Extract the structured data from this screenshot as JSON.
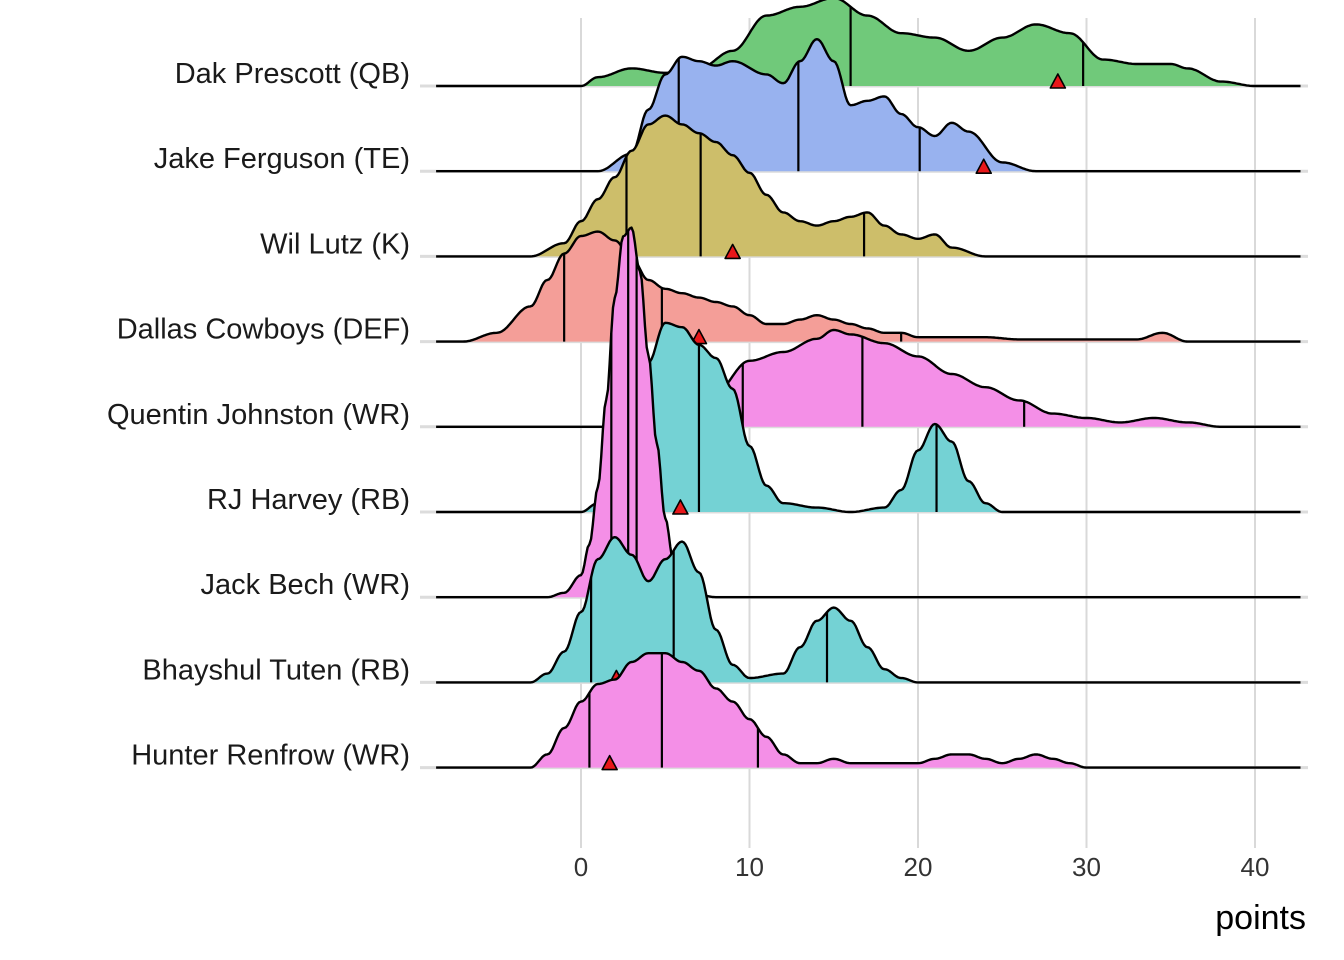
{
  "chart_data": {
    "type": "ridgeline",
    "title": "",
    "xlabel": "points",
    "ylabel": "",
    "xlim": [
      -8.6,
      42.7
    ],
    "x_ticks": [
      0,
      10,
      20,
      30,
      40
    ],
    "x_tick_labels": [
      "0",
      "10",
      "20",
      "30",
      "40"
    ],
    "grid": "vertical lines at x ticks",
    "legend": "none",
    "marker_description": "red triangle",
    "rows": [
      {
        "name": "Dak Prescott (QB)",
        "color": "#70c97a",
        "quantile_lines": [
          6.3,
          16.0,
          29.8
        ],
        "marker": 28.3,
        "density": [
          [
            0,
            0
          ],
          [
            1,
            0.02
          ],
          [
            3,
            0.04
          ],
          [
            5,
            0.03
          ],
          [
            7,
            0.04
          ],
          [
            9,
            0.08
          ],
          [
            11,
            0.16
          ],
          [
            13,
            0.18
          ],
          [
            15,
            0.2
          ],
          [
            17,
            0.16
          ],
          [
            19,
            0.12
          ],
          [
            21,
            0.11
          ],
          [
            23,
            0.08
          ],
          [
            25,
            0.11
          ],
          [
            27,
            0.14
          ],
          [
            29,
            0.12
          ],
          [
            31,
            0.06
          ],
          [
            33,
            0.05
          ],
          [
            35,
            0.05
          ],
          [
            36,
            0.04
          ],
          [
            38,
            0.01
          ],
          [
            40,
            0
          ]
        ]
      },
      {
        "name": "Jake Ferguson (TE)",
        "color": "#98b2ef",
        "quantile_lines": [
          5.8,
          12.9,
          20.1
        ],
        "marker": 23.9,
        "density": [
          [
            1,
            0
          ],
          [
            3,
            0.04
          ],
          [
            4,
            0.14
          ],
          [
            5,
            0.22
          ],
          [
            6,
            0.26
          ],
          [
            7,
            0.25
          ],
          [
            8,
            0.24
          ],
          [
            9,
            0.25
          ],
          [
            11,
            0.22
          ],
          [
            12,
            0.2
          ],
          [
            13,
            0.25
          ],
          [
            14,
            0.3
          ],
          [
            15,
            0.25
          ],
          [
            16,
            0.15
          ],
          [
            17,
            0.16
          ],
          [
            18,
            0.17
          ],
          [
            19,
            0.13
          ],
          [
            20,
            0.1
          ],
          [
            21,
            0.08
          ],
          [
            22,
            0.11
          ],
          [
            23,
            0.09
          ],
          [
            25,
            0.02
          ],
          [
            27,
            0
          ]
        ]
      },
      {
        "name": "Wil Lutz (K)",
        "color": "#cdbe6a",
        "quantile_lines": [
          2.7,
          7.1,
          16.8
        ],
        "marker": 9.0,
        "density": [
          [
            -3,
            0
          ],
          [
            -1,
            0.03
          ],
          [
            0,
            0.08
          ],
          [
            1,
            0.13
          ],
          [
            2,
            0.18
          ],
          [
            3,
            0.24
          ],
          [
            4,
            0.3
          ],
          [
            5,
            0.32
          ],
          [
            6,
            0.3
          ],
          [
            7,
            0.28
          ],
          [
            8,
            0.26
          ],
          [
            9,
            0.23
          ],
          [
            10,
            0.19
          ],
          [
            11,
            0.14
          ],
          [
            12,
            0.1
          ],
          [
            13,
            0.08
          ],
          [
            14,
            0.07
          ],
          [
            15,
            0.08
          ],
          [
            16,
            0.09
          ],
          [
            17,
            0.1
          ],
          [
            18,
            0.07
          ],
          [
            19,
            0.05
          ],
          [
            20,
            0.04
          ],
          [
            21,
            0.05
          ],
          [
            22,
            0.02
          ],
          [
            24,
            0
          ]
        ]
      },
      {
        "name": "Dallas Cowboys (DEF)",
        "color": "#f49e98",
        "quantile_lines": [
          -1.0,
          4.8,
          19.0
        ],
        "marker": 7.0,
        "density": [
          [
            -7,
            0
          ],
          [
            -5,
            0.02
          ],
          [
            -3,
            0.08
          ],
          [
            -2,
            0.14
          ],
          [
            -1,
            0.2
          ],
          [
            0,
            0.24
          ],
          [
            1,
            0.25
          ],
          [
            2,
            0.23
          ],
          [
            3,
            0.19
          ],
          [
            4,
            0.14
          ],
          [
            5,
            0.12
          ],
          [
            6,
            0.11
          ],
          [
            7,
            0.1
          ],
          [
            8,
            0.09
          ],
          [
            9,
            0.08
          ],
          [
            10,
            0.06
          ],
          [
            11,
            0.04
          ],
          [
            12,
            0.04
          ],
          [
            13,
            0.05
          ],
          [
            14,
            0.06
          ],
          [
            15,
            0.05
          ],
          [
            16,
            0.04
          ],
          [
            17,
            0.03
          ],
          [
            18,
            0.02
          ],
          [
            19,
            0.02
          ],
          [
            20,
            0.01
          ],
          [
            22,
            0.01
          ],
          [
            24,
            0.01
          ],
          [
            26,
            0.005
          ],
          [
            30,
            0.005
          ],
          [
            33,
            0.005
          ],
          [
            34.5,
            0.02
          ],
          [
            36,
            0
          ]
        ]
      },
      {
        "name": "Quentin Johnston (WR)",
        "color": "#f48fe7",
        "quantile_lines": [
          9.6,
          16.7,
          26.3
        ],
        "marker": 6.9,
        "density": [
          [
            4,
            0
          ],
          [
            6,
            0.03
          ],
          [
            8,
            0.08
          ],
          [
            10,
            0.15
          ],
          [
            12,
            0.17
          ],
          [
            14,
            0.2
          ],
          [
            15,
            0.22
          ],
          [
            16,
            0.21
          ],
          [
            18,
            0.19
          ],
          [
            20,
            0.16
          ],
          [
            22,
            0.12
          ],
          [
            24,
            0.09
          ],
          [
            26,
            0.06
          ],
          [
            28,
            0.03
          ],
          [
            30,
            0.02
          ],
          [
            32,
            0.01
          ],
          [
            34,
            0.02
          ],
          [
            36,
            0.01
          ],
          [
            38,
            0
          ]
        ]
      },
      {
        "name": "RJ Harvey (RB)",
        "color": "#74d2d4",
        "quantile_lines": [
          4.1,
          7.0,
          21.1
        ],
        "marker": 5.9,
        "density": [
          [
            0,
            0
          ],
          [
            1,
            0.02
          ],
          [
            2,
            0.06
          ],
          [
            3,
            0.18
          ],
          [
            4,
            0.34
          ],
          [
            5,
            0.43
          ],
          [
            6,
            0.42
          ],
          [
            7,
            0.38
          ],
          [
            8,
            0.35
          ],
          [
            9,
            0.28
          ],
          [
            10,
            0.15
          ],
          [
            11,
            0.06
          ],
          [
            12,
            0.02
          ],
          [
            14,
            0.01
          ],
          [
            16,
            0
          ],
          [
            18,
            0.01
          ],
          [
            19,
            0.05
          ],
          [
            20,
            0.14
          ],
          [
            21,
            0.2
          ],
          [
            22,
            0.16
          ],
          [
            23,
            0.07
          ],
          [
            24,
            0.02
          ],
          [
            25,
            0
          ]
        ]
      },
      {
        "name": "Jack Bech (WR)",
        "color": "#f48fe7",
        "quantile_lines": [
          1.8,
          2.8,
          3.3
        ],
        "marker": 5.7,
        "density": [
          [
            -2,
            0
          ],
          [
            -1,
            0.01
          ],
          [
            0,
            0.05
          ],
          [
            0.5,
            0.12
          ],
          [
            1,
            0.25
          ],
          [
            1.5,
            0.45
          ],
          [
            2,
            0.68
          ],
          [
            2.5,
            0.82
          ],
          [
            3,
            0.84
          ],
          [
            3.5,
            0.74
          ],
          [
            4,
            0.55
          ],
          [
            4.5,
            0.35
          ],
          [
            5,
            0.18
          ],
          [
            5.5,
            0.08
          ],
          [
            6,
            0.03
          ],
          [
            7,
            0.005
          ],
          [
            8,
            0
          ]
        ]
      },
      {
        "name": "Bhayshul Tuten (RB)",
        "color": "#74d2d4",
        "quantile_lines": [
          0.6,
          5.5,
          14.6
        ],
        "marker": 2.1,
        "density": [
          [
            -3,
            0
          ],
          [
            -2,
            0.02
          ],
          [
            -1,
            0.07
          ],
          [
            0,
            0.16
          ],
          [
            1,
            0.28
          ],
          [
            2,
            0.33
          ],
          [
            3,
            0.29
          ],
          [
            4,
            0.23
          ],
          [
            5,
            0.28
          ],
          [
            6,
            0.32
          ],
          [
            7,
            0.25
          ],
          [
            8,
            0.12
          ],
          [
            9,
            0.04
          ],
          [
            10,
            0.01
          ],
          [
            12,
            0.02
          ],
          [
            13,
            0.08
          ],
          [
            14,
            0.14
          ],
          [
            15,
            0.17
          ],
          [
            16,
            0.14
          ],
          [
            17,
            0.08
          ],
          [
            18,
            0.03
          ],
          [
            19,
            0.01
          ],
          [
            20,
            0
          ]
        ]
      },
      {
        "name": "Hunter Renfrow (WR)",
        "color": "#f48fe7",
        "quantile_lines": [
          0.5,
          4.8,
          10.5
        ],
        "marker": 1.7,
        "density": [
          [
            -3,
            0
          ],
          [
            -2,
            0.03
          ],
          [
            -1,
            0.09
          ],
          [
            0,
            0.15
          ],
          [
            1,
            0.19
          ],
          [
            2,
            0.2
          ],
          [
            3,
            0.24
          ],
          [
            4,
            0.26
          ],
          [
            5,
            0.26
          ],
          [
            6,
            0.24
          ],
          [
            7,
            0.22
          ],
          [
            8,
            0.18
          ],
          [
            9,
            0.15
          ],
          [
            10,
            0.11
          ],
          [
            11,
            0.07
          ],
          [
            12,
            0.03
          ],
          [
            13,
            0.01
          ],
          [
            14,
            0.01
          ],
          [
            15,
            0.02
          ],
          [
            16,
            0.01
          ],
          [
            18,
            0.01
          ],
          [
            20,
            0.01
          ],
          [
            21,
            0.02
          ],
          [
            22,
            0.03
          ],
          [
            23,
            0.03
          ],
          [
            24,
            0.02
          ],
          [
            25,
            0.01
          ],
          [
            26,
            0.02
          ],
          [
            27,
            0.03
          ],
          [
            28,
            0.02
          ],
          [
            29,
            0.01
          ],
          [
            30,
            0
          ]
        ]
      }
    ]
  }
}
